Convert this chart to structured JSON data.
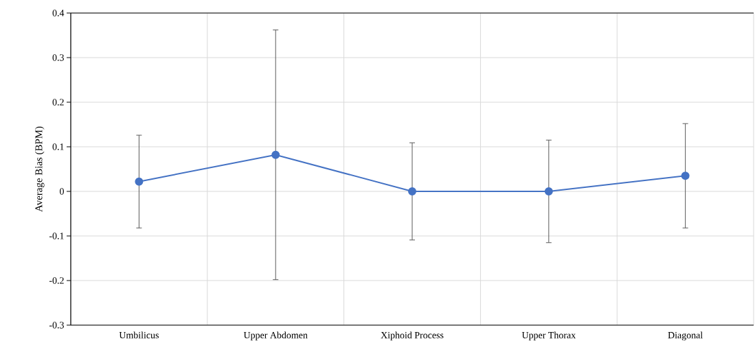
{
  "chart_data": {
    "type": "line",
    "ylabel": "Average Bias (BPM)",
    "categories": [
      "Umbilicus",
      "Upper Abdomen",
      "Xiphoid Process",
      "Upper Thorax",
      "Diagonal"
    ],
    "series": [
      {
        "color": "#4472c4",
        "values": [
          0.022,
          0.082,
          0.0,
          0.0,
          0.035
        ],
        "errors": [
          0.104,
          0.28,
          0.109,
          0.115,
          0.117
        ]
      }
    ],
    "ylim": [
      -0.3,
      0.4
    ],
    "yticks": [
      -0.3,
      -0.2,
      -0.1,
      0,
      0.1,
      0.2,
      0.3,
      0.4
    ],
    "grid": true,
    "marker": "circle",
    "line_style": "solid"
  }
}
